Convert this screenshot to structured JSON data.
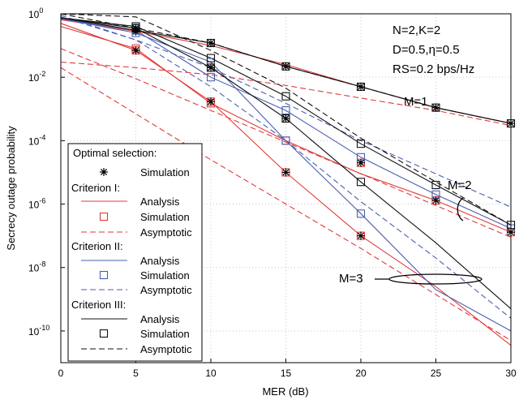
{
  "chart_data": {
    "type": "line",
    "xlabel": "MER (dB)",
    "ylabel": "Secrecy outage probability",
    "xlim": [
      0,
      30
    ],
    "ylim": [
      1e-11,
      1
    ],
    "yscale": "log",
    "grid": true,
    "x_ticks": [
      "0",
      "5",
      "10",
      "15",
      "20",
      "25",
      "30"
    ],
    "y_ticks": [
      {
        "base": "10",
        "exp": "-10",
        "value": 1e-10
      },
      {
        "base": "10",
        "exp": "-8",
        "value": 1e-08
      },
      {
        "base": "10",
        "exp": "-6",
        "value": 1e-06
      },
      {
        "base": "10",
        "exp": "-4",
        "value": 0.0001
      },
      {
        "base": "10",
        "exp": "-2",
        "value": 0.01
      },
      {
        "base": "10",
        "exp": "0",
        "value": 1
      }
    ],
    "colors": {
      "criterion1": "#e03a3a",
      "criterion2": "#4a5fb0",
      "criterion3": "#111111"
    },
    "info_lines": [
      "N=2,K=2",
      "D=0.5,η=0.5",
      "RS=0.2 bps/Hz"
    ],
    "curve_labels": [
      "M=1",
      "M=2",
      "M=3"
    ],
    "legend": {
      "position": "bottom-left",
      "optimal_header": "Optimal selection:",
      "optimal_sim": "Simulation",
      "groups": [
        {
          "header": "Criterion I:",
          "analysis": "Analysis",
          "simulation": "Simulation",
          "asymptotic": "Asymptotic",
          "color": "#e03a3a"
        },
        {
          "header": "Criterion II:",
          "analysis": "Analysis",
          "simulation": "Simulation",
          "asymptotic": "Asymptotic",
          "color": "#4a5fb0"
        },
        {
          "header": "Criterion III:",
          "analysis": "Analysis",
          "simulation": "Simulation",
          "asymptotic": "Asymptotic",
          "color": "#111111"
        }
      ]
    },
    "series": [
      {
        "criterion": 0,
        "kind": "analysis",
        "x": [
          0,
          5,
          10,
          15,
          20,
          25,
          30
        ],
        "y": [
          0.65,
          0.28,
          0.1,
          0.025,
          0.005,
          0.0011,
          0.00035
        ]
      },
      {
        "criterion": 0,
        "kind": "analysis",
        "x": [
          0,
          5,
          10,
          15,
          20,
          25,
          30
        ],
        "y": [
          0.4,
          0.08,
          0.0015,
          0.0001,
          9e-06,
          1.3e-06,
          1.3e-07
        ]
      },
      {
        "criterion": 0,
        "kind": "analysis",
        "x": [
          0,
          5,
          10,
          15,
          20,
          25,
          30
        ],
        "y": [
          0.5,
          0.07,
          0.0017,
          1e-05,
          1e-07,
          2.5e-09,
          3.5e-11
        ]
      },
      {
        "criterion": 0,
        "kind": "asymptotic",
        "x": [
          0,
          5,
          10,
          15,
          20,
          25,
          30
        ],
        "y": [
          0.03,
          0.02,
          0.012,
          0.0055,
          0.0022,
          0.0009,
          0.0003
        ]
      },
      {
        "criterion": 0,
        "kind": "asymptotic",
        "x": [
          0,
          5,
          10,
          15,
          20,
          25,
          30
        ],
        "y": [
          0.08,
          0.009,
          0.0009,
          9e-05,
          9e-06,
          9e-07,
          9e-08
        ]
      },
      {
        "criterion": 0,
        "kind": "asymptotic",
        "x": [
          0,
          5,
          10,
          15,
          20,
          25,
          30
        ],
        "y": [
          0.02,
          0.0007,
          2.5e-05,
          1e-06,
          4e-08,
          1.4e-09,
          5e-11
        ]
      },
      {
        "criterion": 1,
        "kind": "analysis",
        "x": [
          0,
          5,
          10,
          15,
          20,
          25,
          30
        ],
        "y": [
          0.7,
          0.3,
          0.01,
          0.0009,
          3e-05,
          2e-06,
          1.7e-07
        ]
      },
      {
        "criterion": 1,
        "kind": "analysis",
        "x": [
          0,
          5,
          10,
          15,
          20,
          25,
          30
        ],
        "y": [
          0.7,
          0.25,
          0.03,
          0.0001,
          5e-07,
          2e-09,
          1e-10
        ]
      },
      {
        "criterion": 1,
        "kind": "asymptotic",
        "x": [
          0,
          5,
          10,
          15,
          20,
          25,
          30
        ],
        "y": [
          0.8,
          0.15,
          0.02,
          0.0015,
          0.0001,
          9e-06,
          8e-07
        ]
      },
      {
        "criterion": 1,
        "kind": "asymptotic",
        "x": [
          0,
          5,
          10,
          15,
          20,
          25,
          30
        ],
        "y": [
          0.9,
          0.15,
          0.005,
          0.0001,
          1.2e-06,
          2e-08,
          2.5e-10
        ]
      },
      {
        "criterion": 2,
        "kind": "analysis",
        "x": [
          0,
          5,
          10,
          15,
          20,
          25,
          30
        ],
        "y": [
          0.75,
          0.3,
          0.12,
          0.022,
          0.005,
          0.0011,
          0.00035
        ]
      },
      {
        "criterion": 2,
        "kind": "analysis",
        "x": [
          0,
          5,
          10,
          15,
          20,
          25,
          30
        ],
        "y": [
          0.75,
          0.4,
          0.04,
          0.0025,
          8e-05,
          4e-06,
          2.2e-07
        ]
      },
      {
        "criterion": 2,
        "kind": "analysis",
        "x": [
          0,
          5,
          10,
          15,
          20,
          25,
          30
        ],
        "y": [
          0.75,
          0.35,
          0.02,
          0.0005,
          5e-06,
          6e-08,
          5e-10
        ]
      },
      {
        "criterion": 2,
        "kind": "asymptotic",
        "x": [
          0,
          5,
          10,
          15,
          20,
          25,
          30
        ],
        "y": [
          1,
          0.35,
          0.12,
          0.022,
          0.005,
          0.0011,
          0.00035
        ]
      },
      {
        "criterion": 2,
        "kind": "asymptotic",
        "x": [
          0,
          5,
          10,
          15,
          20,
          25,
          30
        ],
        "y": [
          1,
          0.8,
          0.07,
          0.0045,
          0.00012,
          5e-06,
          2.2e-07
        ]
      }
    ],
    "markers": [
      {
        "kind": "sim",
        "criterion": 0,
        "x": [
          5,
          10,
          15,
          20,
          25,
          30
        ],
        "y": [
          0.08,
          0.0015,
          0.0001,
          2e-05,
          1.3e-06,
          1.3e-07
        ]
      },
      {
        "kind": "sim",
        "criterion": 0,
        "x": [
          5,
          10,
          15,
          20
        ],
        "y": [
          0.07,
          0.0017,
          1e-05,
          1e-07
        ]
      },
      {
        "kind": "sim",
        "criterion": 1,
        "x": [
          5,
          10,
          15,
          20,
          25,
          30
        ],
        "y": [
          0.3,
          0.01,
          0.0009,
          3e-05,
          2e-06,
          1.7e-07
        ]
      },
      {
        "kind": "sim",
        "criterion": 1,
        "x": [
          5,
          10,
          15,
          20
        ],
        "y": [
          0.25,
          0.03,
          0.0001,
          5e-07
        ]
      },
      {
        "kind": "sim",
        "criterion": 2,
        "x": [
          5,
          10,
          15,
          20,
          25,
          30
        ],
        "y": [
          0.35,
          0.12,
          0.022,
          0.005,
          0.0011,
          0.00035
        ]
      },
      {
        "kind": "sim",
        "criterion": 2,
        "x": [
          5,
          10,
          15,
          20,
          25,
          30
        ],
        "y": [
          0.4,
          0.04,
          0.0025,
          8e-05,
          4e-06,
          2.2e-07
        ]
      },
      {
        "kind": "sim",
        "criterion": 2,
        "x": [
          5,
          10,
          15,
          20
        ],
        "y": [
          0.35,
          0.02,
          0.0005,
          5e-06
        ]
      },
      {
        "kind": "star",
        "x": [
          5,
          10,
          15,
          20,
          25,
          30
        ],
        "y": [
          0.35,
          0.12,
          0.022,
          0.005,
          0.0011,
          0.00035
        ]
      },
      {
        "kind": "star",
        "x": [
          5,
          10,
          15,
          20,
          25,
          30
        ],
        "y": [
          0.28,
          0.02,
          0.0005,
          2e-05,
          1.3e-06,
          1.3e-07
        ]
      },
      {
        "kind": "star",
        "x": [
          5,
          10,
          15,
          20
        ],
        "y": [
          0.07,
          0.0017,
          1e-05,
          1e-07
        ]
      }
    ]
  }
}
